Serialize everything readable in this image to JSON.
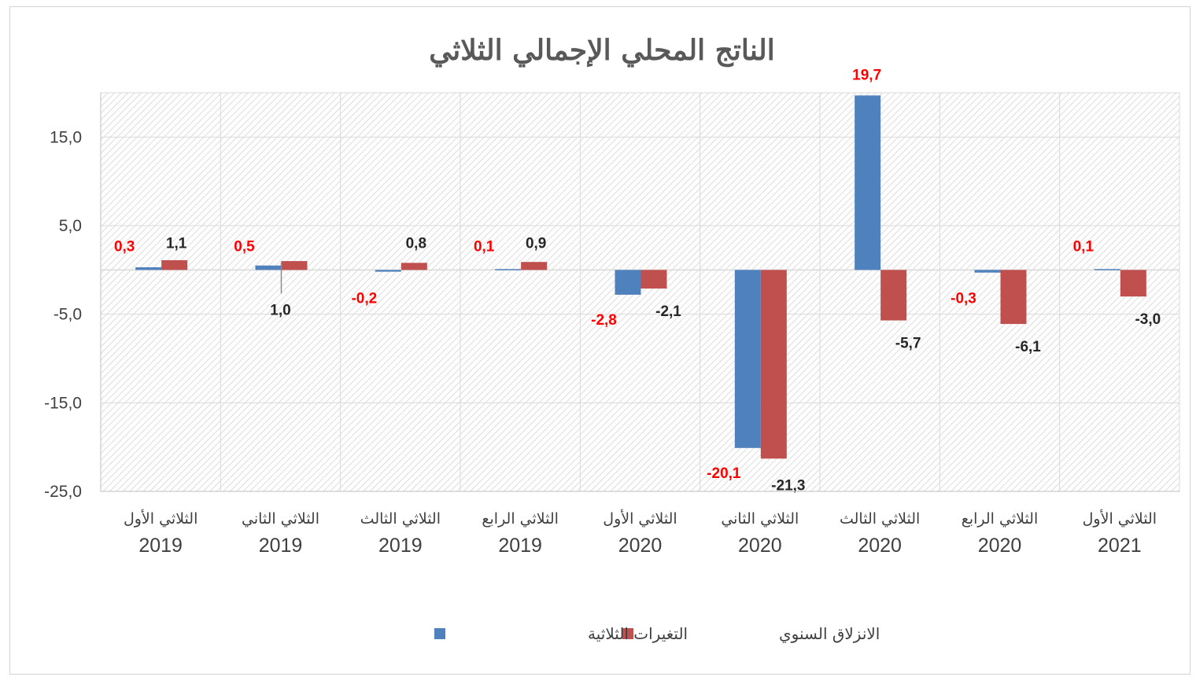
{
  "chart_data": {
    "type": "bar",
    "title": "الناتج المحلي الإجمالي الثلاثي",
    "categories": [
      {
        "quarter": "الثلاثي الأول",
        "year": "2019"
      },
      {
        "quarter": "الثلاثي الثاني",
        "year": "2019"
      },
      {
        "quarter": "الثلاثي الثالث",
        "year": "2019"
      },
      {
        "quarter": "الثلاثي الرابع",
        "year": "2019"
      },
      {
        "quarter": "الثلاثي الأول",
        "year": "2020"
      },
      {
        "quarter": "الثلاثي الثاني",
        "year": "2020"
      },
      {
        "quarter": "الثلاثي الثالث",
        "year": "2020"
      },
      {
        "quarter": "الثلاثي الرابع",
        "year": "2020"
      },
      {
        "quarter": "الثلاثي الأول",
        "year": "2021"
      }
    ],
    "series": [
      {
        "name": "التغيرات الثلاثية",
        "color": "#4f81bd",
        "label_color": "#ff0000",
        "values": [
          0.3,
          0.5,
          -0.2,
          0.1,
          -2.8,
          -20.1,
          19.7,
          -0.3,
          0.1
        ],
        "labels": [
          "0,3",
          "0,5",
          "-0,2",
          "0,1",
          "-2,8",
          "-20,1",
          "19,7",
          "-0,3",
          "0,1"
        ]
      },
      {
        "name": "الانزلاق السنوي",
        "color": "#c0504d",
        "label_color": "#262626",
        "values": [
          1.1,
          1.0,
          0.8,
          0.9,
          -2.1,
          -21.3,
          -5.7,
          -6.1,
          -3.0
        ],
        "labels": [
          "1,1",
          "1,0",
          "0,8",
          "0,9",
          "-2,1",
          "-21,3",
          "-5,7",
          "-6,1",
          "-3,0"
        ]
      }
    ],
    "y_ticks": [
      "15,0",
      "5,0",
      "-5,0",
      "-15,0",
      "-25,0"
    ],
    "y_tick_values": [
      15,
      5,
      -5,
      -15,
      -25
    ],
    "ylim": [
      -25,
      20
    ],
    "grid": true,
    "legend_position": "bottom"
  }
}
